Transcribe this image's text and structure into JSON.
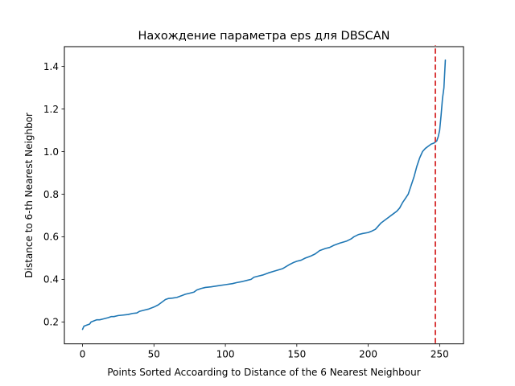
{
  "chart_data": {
    "type": "line",
    "title": "Нахождение параметра eps для DBSCAN",
    "xlabel": "Points Sorted Accoarding to Distance of the 6 Nearest Neighbour",
    "ylabel": "Distance to 6-th Nearest Neighbor",
    "xlim": [
      -12.7,
      266.7
    ],
    "ylim": [
      0.097,
      1.493
    ],
    "xticks": [
      0,
      50,
      100,
      150,
      200,
      250
    ],
    "xtick_labels": [
      "0",
      "50",
      "100",
      "150",
      "200",
      "250"
    ],
    "yticks": [
      0.2,
      0.4,
      0.6,
      0.8,
      1.0,
      1.2,
      1.4
    ],
    "ytick_labels": [
      "0.2",
      "0.4",
      "0.6",
      "0.8",
      "1.0",
      "1.2",
      "1.4"
    ],
    "grid": false,
    "series": [
      {
        "color": "#1f77b4",
        "x": [
          0,
          1,
          3,
          5,
          6,
          8,
          10,
          12,
          15,
          18,
          20,
          22,
          25,
          28,
          32,
          35,
          38,
          40,
          43,
          46,
          50,
          53,
          55,
          57,
          58,
          60,
          63,
          66,
          70,
          72,
          75,
          78,
          80,
          83,
          86,
          90,
          95,
          100,
          105,
          108,
          112,
          115,
          118,
          120,
          123,
          126,
          130,
          135,
          140,
          145,
          148,
          150,
          153,
          156,
          160,
          163,
          166,
          170,
          173,
          176,
          180,
          185,
          188,
          190,
          193,
          196,
          200,
          202,
          205,
          207,
          209,
          212,
          214,
          216,
          218,
          220,
          222,
          224,
          226,
          228,
          230,
          232,
          234,
          236,
          237,
          238,
          240,
          242,
          244,
          246,
          247,
          248,
          249,
          250,
          251,
          252,
          253,
          254
        ],
        "y": [
          0.165,
          0.18,
          0.185,
          0.19,
          0.2,
          0.205,
          0.21,
          0.21,
          0.215,
          0.22,
          0.225,
          0.225,
          0.23,
          0.232,
          0.235,
          0.24,
          0.242,
          0.25,
          0.255,
          0.26,
          0.27,
          0.28,
          0.29,
          0.3,
          0.305,
          0.31,
          0.312,
          0.315,
          0.325,
          0.33,
          0.335,
          0.34,
          0.35,
          0.357,
          0.362,
          0.365,
          0.37,
          0.375,
          0.38,
          0.385,
          0.39,
          0.395,
          0.4,
          0.41,
          0.415,
          0.42,
          0.43,
          0.44,
          0.45,
          0.47,
          0.48,
          0.485,
          0.49,
          0.5,
          0.51,
          0.52,
          0.535,
          0.545,
          0.55,
          0.56,
          0.57,
          0.58,
          0.59,
          0.6,
          0.61,
          0.615,
          0.62,
          0.625,
          0.635,
          0.65,
          0.665,
          0.68,
          0.69,
          0.7,
          0.71,
          0.72,
          0.735,
          0.76,
          0.78,
          0.8,
          0.84,
          0.88,
          0.93,
          0.97,
          0.985,
          1.0,
          1.015,
          1.025,
          1.035,
          1.04,
          1.045,
          1.05,
          1.07,
          1.1,
          1.17,
          1.25,
          1.3,
          1.43
        ]
      }
    ],
    "annotations": [
      {
        "type": "vline",
        "x": 247,
        "y_from": 0.1,
        "y_to": 1.5,
        "color": "#d62728",
        "style": "dashed"
      }
    ]
  }
}
